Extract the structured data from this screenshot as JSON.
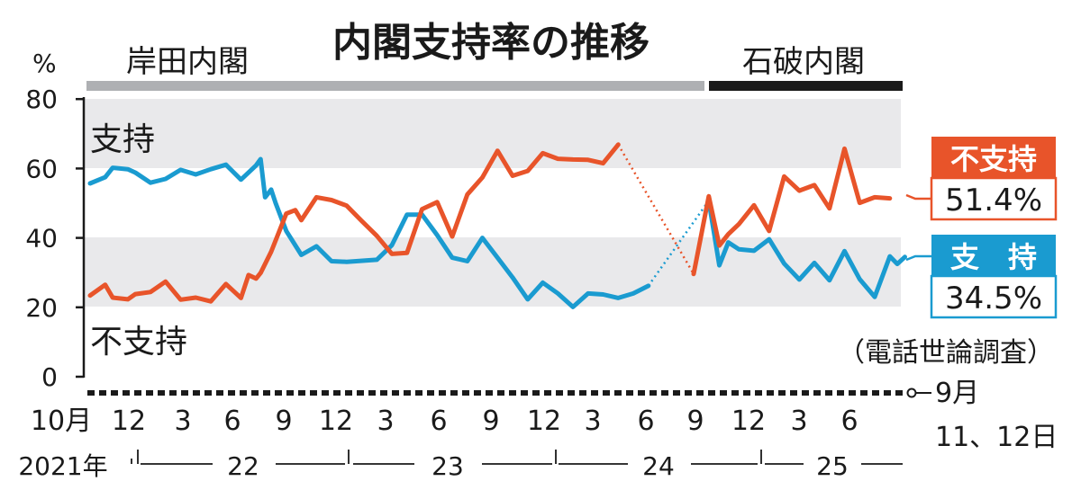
{
  "chart_data": {
    "type": "line",
    "title": "内閣支持率の推移",
    "y_unit": "%",
    "ylim": [
      0,
      80
    ],
    "yticks": [
      "0",
      "20",
      "40",
      "60",
      "80"
    ],
    "grid": "shaded bands 20-40 and 60-80",
    "x_tick_labels": [
      "10月",
      "12",
      "3",
      "6",
      "9",
      "12",
      "3",
      "6",
      "9",
      "12",
      "3",
      "6",
      "9",
      "12",
      "3",
      "6"
    ],
    "year_labels": [
      "2021年",
      "22",
      "23",
      "24",
      "25"
    ],
    "last_point_label": "9月\n11、12日",
    "cabinets": [
      {
        "name": "岸田内閣"
      },
      {
        "name": "石破内閣"
      }
    ],
    "inline_labels": {
      "support": "支持",
      "nonsupport": "不支持"
    },
    "source_note": "（電話世論調査）",
    "series": [
      {
        "name": "支持",
        "color": "#1a9bd0",
        "latest_label": "支　持",
        "latest_value_text": "34.5%",
        "segments": [
          [
            [
              0,
              55.7
            ],
            [
              1,
              57.5
            ],
            [
              1.5,
              60.2
            ],
            [
              2.5,
              59.8
            ],
            [
              3,
              58.8
            ],
            [
              4,
              55.9
            ],
            [
              5,
              57
            ],
            [
              6,
              59.6
            ],
            [
              7,
              58.3
            ],
            [
              8,
              59.8
            ],
            [
              9,
              61.1
            ],
            [
              10,
              56.8
            ],
            [
              11,
              60.9
            ],
            [
              11.3,
              62.7
            ],
            [
              11.6,
              51.7
            ],
            [
              12,
              53.9
            ],
            [
              12.3,
              50
            ],
            [
              13,
              42
            ],
            [
              14,
              35.1
            ],
            [
              15,
              37.6
            ],
            [
              16,
              33.3
            ],
            [
              17,
              33.1
            ],
            [
              19,
              33.7
            ],
            [
              20,
              37.9
            ],
            [
              21,
              46.7
            ],
            [
              22,
              46.7
            ],
            [
              23,
              40.8
            ],
            [
              24,
              34.3
            ],
            [
              25,
              33.3
            ],
            [
              26,
              40
            ],
            [
              27,
              34.3
            ],
            [
              28,
              28.6
            ],
            [
              29,
              22.3
            ],
            [
              30,
              27.1
            ],
            [
              31,
              24
            ],
            [
              32,
              20.1
            ],
            [
              33,
              24
            ],
            [
              34,
              23.7
            ],
            [
              35,
              22.7
            ],
            [
              36,
              24
            ],
            [
              37,
              26.2
            ]
          ],
          [
            [
              41,
              50.7
            ],
            [
              41.7,
              32.1
            ],
            [
              42.3,
              38.7
            ],
            [
              43,
              36.7
            ],
            [
              44,
              36.3
            ],
            [
              45,
              39.6
            ],
            [
              46,
              32.6
            ],
            [
              47,
              28
            ],
            [
              48,
              32.8
            ],
            [
              49,
              27.8
            ],
            [
              50,
              36.2
            ],
            [
              51,
              28.1
            ],
            [
              52,
              23
            ],
            [
              53,
              34.7
            ],
            [
              53.5,
              32.5
            ],
            [
              54,
              34.5
            ]
          ]
        ],
        "dotted_bridge": [
          [
            37,
            26.2
          ],
          [
            41,
            50.7
          ]
        ]
      },
      {
        "name": "不支持",
        "color": "#e8542a",
        "latest_label": "不支持",
        "latest_value_text": "51.4%",
        "segments": [
          [
            [
              0,
              23.4
            ],
            [
              1,
              26.5
            ],
            [
              1.5,
              22.8
            ],
            [
              2.5,
              22.3
            ],
            [
              3,
              23.8
            ],
            [
              4,
              24.4
            ],
            [
              5,
              27.4
            ],
            [
              6,
              22.2
            ],
            [
              7,
              22.8
            ],
            [
              8,
              21.7
            ],
            [
              9,
              26.7
            ],
            [
              10,
              22.7
            ],
            [
              10.5,
              29.3
            ],
            [
              11,
              28.3
            ],
            [
              11.3,
              29.9
            ],
            [
              12,
              36
            ],
            [
              13,
              47
            ],
            [
              13.6,
              48
            ],
            [
              14,
              45.1
            ],
            [
              15,
              51.7
            ],
            [
              16,
              50.9
            ],
            [
              17,
              49.3
            ],
            [
              18,
              44.9
            ],
            [
              19,
              40.6
            ],
            [
              20,
              35.4
            ],
            [
              21,
              35.7
            ],
            [
              22,
              48.3
            ],
            [
              23,
              50.3
            ],
            [
              24,
              40.4
            ],
            [
              25,
              52.5
            ],
            [
              26,
              57.4
            ],
            [
              27,
              65.1
            ],
            [
              28,
              57.9
            ],
            [
              29,
              59.3
            ],
            [
              30,
              64.4
            ],
            [
              31,
              62.8
            ],
            [
              32,
              62.6
            ],
            [
              33,
              62.5
            ],
            [
              34,
              61.5
            ],
            [
              35,
              66.9
            ]
          ],
          [
            [
              40,
              29.6
            ],
            [
              41,
              52
            ],
            [
              41.7,
              37.8
            ],
            [
              42.3,
              41.1
            ],
            [
              43,
              44
            ],
            [
              44,
              49.4
            ],
            [
              45,
              42
            ],
            [
              46,
              57.7
            ],
            [
              47,
              53.6
            ],
            [
              48,
              55.2
            ],
            [
              49,
              48.5
            ],
            [
              50,
              65.7
            ],
            [
              51,
              50.1
            ],
            [
              52,
              51.7
            ],
            [
              53,
              51.4
            ]
          ]
        ],
        "dotted_bridge": [
          [
            35,
            66.9
          ],
          [
            40,
            29.6
          ]
        ]
      }
    ]
  }
}
